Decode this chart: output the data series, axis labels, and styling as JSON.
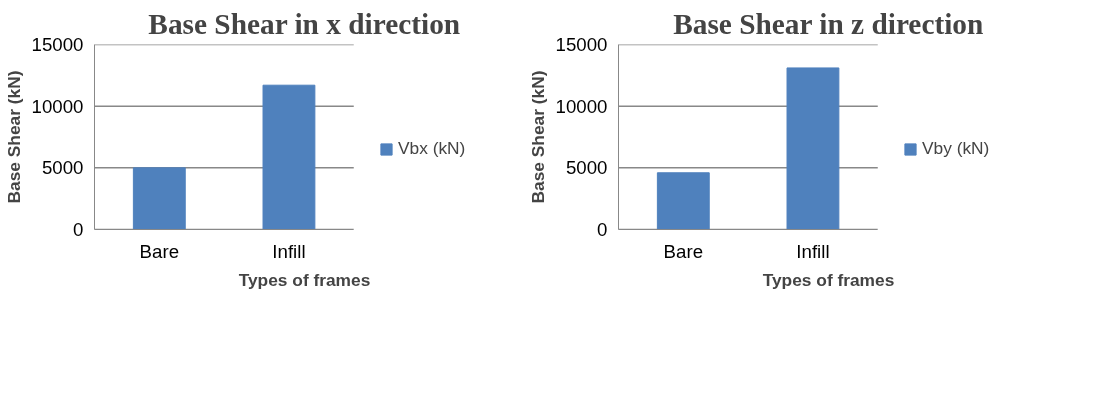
{
  "chart_data": [
    {
      "type": "bar",
      "title": "Base Shear in x direction",
      "xlabel": "Types of frames",
      "ylabel": "Base Shear (kN)",
      "categories": [
        "Bare",
        "Infill"
      ],
      "series": [
        {
          "name": "Vbx (kN)",
          "color": "#4f81bd",
          "values": [
            5000,
            11700
          ]
        }
      ],
      "ylim": [
        0,
        15000
      ],
      "yticks": [
        0,
        5000,
        10000,
        15000
      ],
      "grid": "y",
      "legend": "right"
    },
    {
      "type": "bar",
      "title": "Base Shear in z direction",
      "xlabel": "Types of frames",
      "ylabel": "Base Shear (kN)",
      "categories": [
        "Bare",
        "Infill"
      ],
      "series": [
        {
          "name": "Vby (kN)",
          "color": "#4f81bd",
          "values": [
            4600,
            13100
          ]
        }
      ],
      "ylim": [
        0,
        15000
      ],
      "yticks": [
        0,
        5000,
        10000,
        15000
      ],
      "grid": "y",
      "legend": "right"
    }
  ]
}
